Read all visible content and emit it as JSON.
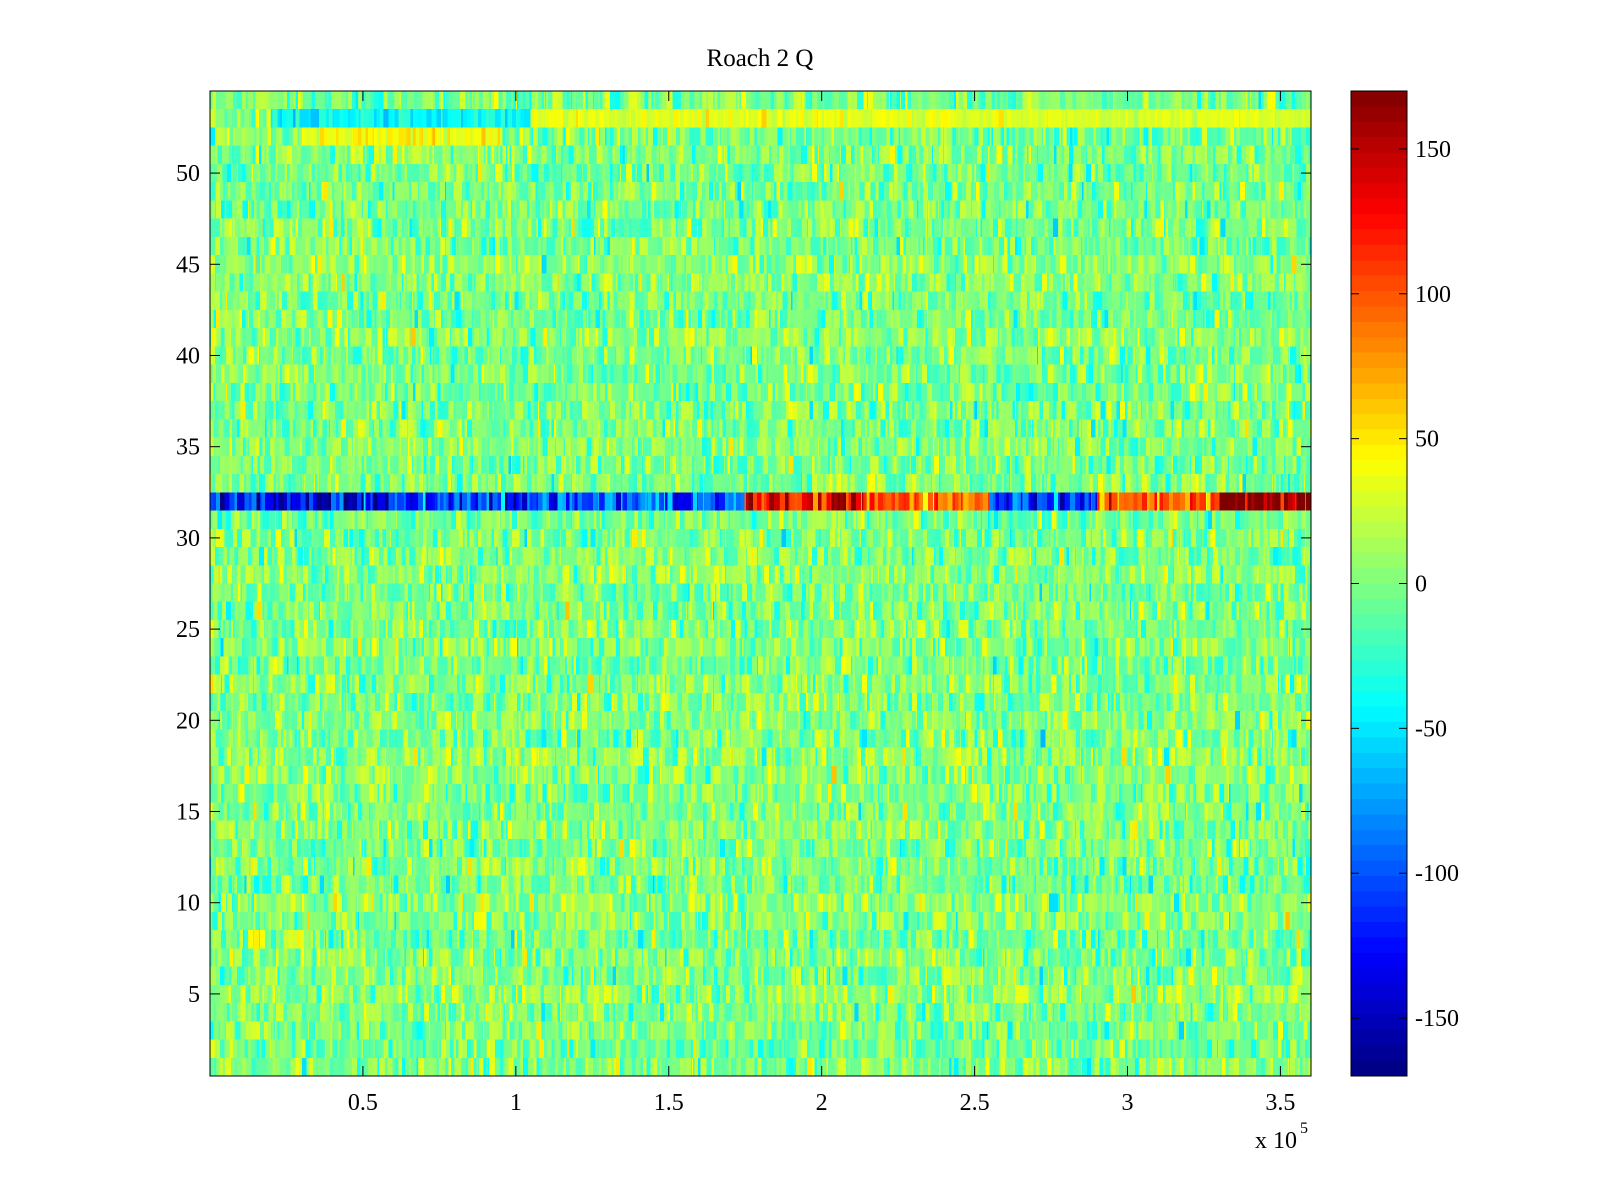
{
  "chart_data": {
    "type": "heatmap",
    "title": "Roach 2 Q",
    "xlabel": "",
    "ylabel": "",
    "x_multiplier_label": "x 10",
    "x_multiplier_exp": "5",
    "xlim": [
      0,
      360000
    ],
    "ylim": [
      0.5,
      54.5
    ],
    "x_ticks": [
      50000,
      100000,
      150000,
      200000,
      250000,
      300000,
      350000
    ],
    "x_tick_labels": [
      "0.5",
      "1",
      "1.5",
      "2",
      "2.5",
      "3",
      "3.5"
    ],
    "y_ticks": [
      5,
      10,
      15,
      20,
      25,
      30,
      35,
      40,
      45,
      50
    ],
    "y_tick_labels": [
      "5",
      "10",
      "15",
      "20",
      "25",
      "30",
      "35",
      "40",
      "45",
      "50"
    ],
    "colormap": "jet",
    "clim": [
      -170,
      170
    ],
    "colorbar_ticks": [
      150,
      100,
      50,
      0,
      -50,
      -100,
      -150
    ],
    "colorbar_tick_labels": [
      "150",
      "100",
      "50",
      "0",
      "-50",
      "-100",
      "-150"
    ],
    "rows": 54,
    "background_mean": 0,
    "background_spread": 20,
    "highlighted_rows": [
      {
        "row": 32,
        "segments": [
          {
            "x_range": [
              0,
              100000
            ],
            "level": -130
          },
          {
            "x_range": [
              100000,
              175000
            ],
            "level": -100
          },
          {
            "x_range": [
              175000,
              215000
            ],
            "level": 140
          },
          {
            "x_range": [
              215000,
              255000
            ],
            "level": 90
          },
          {
            "x_range": [
              255000,
              290000
            ],
            "level": -110
          },
          {
            "x_range": [
              290000,
              330000
            ],
            "level": 100
          },
          {
            "x_range": [
              330000,
              360000
            ],
            "level": 165
          }
        ]
      },
      {
        "row": 53,
        "segments": [
          {
            "x_range": [
              20000,
              105000
            ],
            "level": -45
          },
          {
            "x_range": [
              105000,
              260000
            ],
            "level": 35
          },
          {
            "x_range": [
              260000,
              360000
            ],
            "level": 30
          }
        ]
      },
      {
        "row": 52,
        "segments": [
          {
            "x_range": [
              30000,
              95000
            ],
            "level": 40
          }
        ]
      }
    ]
  }
}
